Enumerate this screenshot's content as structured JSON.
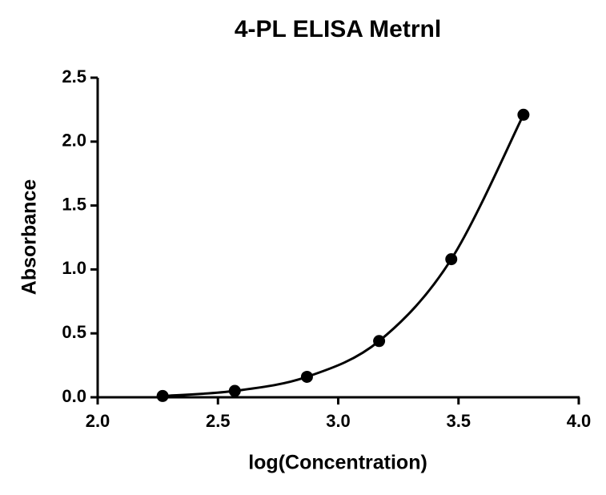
{
  "chart_data": {
    "type": "scatter",
    "title": "4-PL ELISA Metrnl",
    "x_label": "log(Concentration)",
    "y_label": "Absorbance",
    "x": [
      2.27,
      2.57,
      2.87,
      3.17,
      3.47,
      3.77
    ],
    "values": [
      0.01,
      0.05,
      0.16,
      0.44,
      1.08,
      2.21
    ],
    "color": "#000000",
    "fit_curve": true,
    "xlim": [
      2.0,
      4.0
    ],
    "xticks": [
      {
        "value": 2,
        "label": "2.0"
      },
      2.5,
      {
        "value": 3,
        "label": "3.0"
      },
      3.5,
      {
        "value": 4,
        "label": "4.0"
      }
    ],
    "ylim": [
      0,
      2.5
    ],
    "yticks": [
      {
        "value": 0,
        "label": "0.0"
      },
      0.5,
      {
        "value": 1,
        "label": "1.0"
      },
      1.5,
      {
        "value": 2,
        "label": "2.0"
      },
      2.5
    ],
    "grid": false
  }
}
